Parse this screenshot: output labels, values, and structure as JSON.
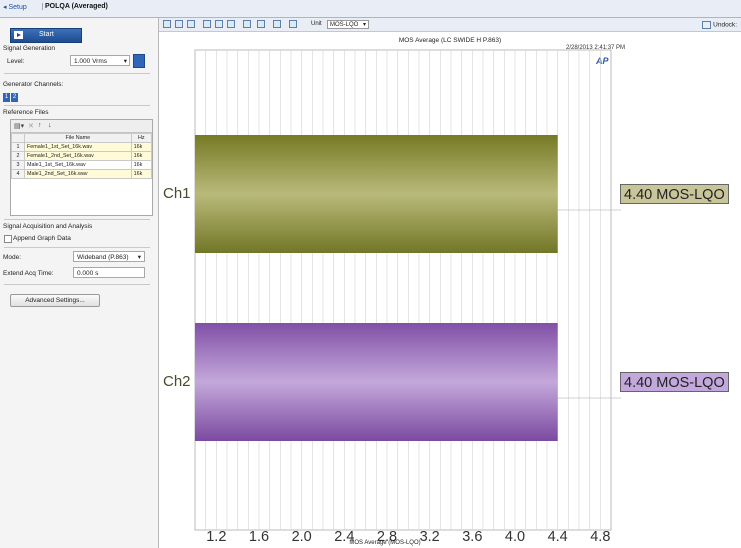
{
  "tabs": {
    "setup": "Setup",
    "current": "POLQA (Averaged)"
  },
  "left": {
    "start_label": "Start",
    "signal_generation": "Signal Generation",
    "level_label": "Level:",
    "level_value": "1.000 Vrms",
    "generator_channels": "Generator Channels:",
    "channels": [
      "1",
      "2"
    ],
    "reference_files": "Reference Files",
    "table_headers": [
      "File Name",
      "Hz"
    ],
    "files": [
      {
        "n": "1",
        "name": "Female1_1st_Set_16k.wav",
        "hz": "16k"
      },
      {
        "n": "2",
        "name": "Female1_2nd_Set_16k.wav",
        "hz": "16k"
      },
      {
        "n": "3",
        "name": "Male1_1st_Set_16k.wav",
        "hz": "16k"
      },
      {
        "n": "4",
        "name": "Male1_2nd_Set_16k.wav",
        "hz": "16k"
      }
    ],
    "acquisition": "Signal Acquisition and Analysis",
    "append_graph": "Append Graph Data",
    "mode_label": "Mode:",
    "mode_value": "Wideband (P.863)",
    "extend_label": "Extend Acq Time:",
    "extend_value": "0.000 s",
    "advanced": "Advanced Settings..."
  },
  "graph": {
    "unit_label": "Unit",
    "unit_value": "MOS-LQO",
    "undock": "Undock",
    "timestamp": "2/28/2013 2:41:37 PM",
    "ch1_value": "4.40 MOS-LQO",
    "ch2_value": "4.40 MOS-LQO"
  },
  "chart_data": {
    "type": "bar",
    "orientation": "horizontal",
    "title": "MOS Average (LC SWIDE H P.863)",
    "xlabel": "MOS Average (MOS-LQO)",
    "categories": [
      "Ch1",
      "Ch2"
    ],
    "values": [
      4.4,
      4.4
    ],
    "colors": [
      "#8a8c3a",
      "#9a6ab8"
    ],
    "xlim": [
      1.0,
      4.9
    ],
    "xticks": [
      "1.2",
      "1.6",
      "2.0",
      "2.4",
      "2.8",
      "3.2",
      "3.6",
      "4.0",
      "4.4",
      "4.8"
    ],
    "grid": true
  }
}
